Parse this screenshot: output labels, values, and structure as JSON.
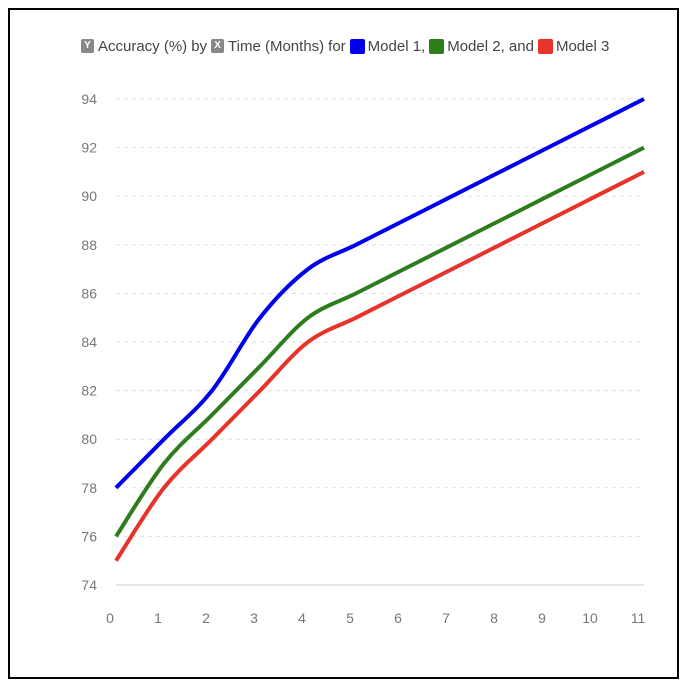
{
  "legend": {
    "y_badge": "Y",
    "y_label": "Accuracy (%)",
    "by_text": "by",
    "x_badge": "X",
    "x_label": "Time (Months)",
    "for_text": "for",
    "entries": [
      {
        "label": "Model 1,",
        "color": "#0000ee"
      },
      {
        "label": "Model 2, and",
        "color": "#2e7d1c"
      },
      {
        "label": "Model 3",
        "color": "#e8332a"
      }
    ]
  },
  "chart_data": {
    "type": "line",
    "x": [
      0,
      1,
      2,
      3,
      4,
      5,
      6,
      7,
      8,
      9,
      10,
      11
    ],
    "series": [
      {
        "name": "Model 1",
        "color": "#0000ee",
        "values": [
          78,
          80,
          82,
          85,
          87,
          88,
          89,
          90,
          91,
          92,
          93,
          94
        ]
      },
      {
        "name": "Model 2",
        "color": "#2e7d1c",
        "values": [
          76,
          79,
          81,
          83,
          85,
          86,
          87,
          88,
          89,
          90,
          91,
          92
        ]
      },
      {
        "name": "Model 3",
        "color": "#e8332a",
        "values": [
          75,
          78,
          80,
          82,
          84,
          85,
          86,
          87,
          88,
          89,
          90,
          91
        ]
      }
    ],
    "xlabel": "Time (Months)",
    "ylabel": "Accuracy (%)",
    "xlim": [
      0,
      11
    ],
    "ylim": [
      74,
      94
    ],
    "yticks": [
      74,
      76,
      78,
      80,
      82,
      84,
      86,
      88,
      90,
      92,
      94
    ],
    "xticks": [
      0,
      1,
      2,
      3,
      4,
      5,
      6,
      7,
      8,
      9,
      10,
      11
    ],
    "grid": true,
    "legend_position": "top"
  }
}
